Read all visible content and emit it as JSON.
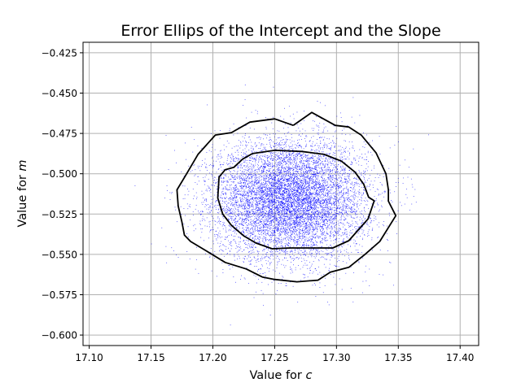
{
  "chart_data": {
    "type": "scatter",
    "title": "Error Ellips of the Intercept and the Slope",
    "xlabel_prefix": "Value for ",
    "xlabel_var": "c",
    "ylabel_prefix": "Value for ",
    "ylabel_var": "m",
    "xlim": [
      17.095,
      17.415
    ],
    "ylim": [
      -0.6065,
      -0.4185
    ],
    "x_ticks": [
      "17.10",
      "17.15",
      "17.20",
      "17.25",
      "17.30",
      "17.35",
      "17.40"
    ],
    "x_tick_values": [
      17.1,
      17.15,
      17.2,
      17.25,
      17.3,
      17.35,
      17.4
    ],
    "y_ticks": [
      "−0.425",
      "−0.450",
      "−0.475",
      "−0.500",
      "−0.525",
      "−0.550",
      "−0.575",
      "−0.600"
    ],
    "y_tick_values": [
      -0.425,
      -0.45,
      -0.475,
      -0.5,
      -0.525,
      -0.55,
      -0.575,
      -0.6
    ],
    "grid": true,
    "scatter": {
      "color": "#0000ff",
      "n_points": 9000,
      "center": [
        17.262,
        -0.516
      ],
      "std": [
        0.031,
        0.0185
      ]
    },
    "contours": [
      {
        "level": "inner",
        "color": "#000000",
        "points": [
          [
            17.25,
            -0.4855
          ],
          [
            17.272,
            -0.4862
          ],
          [
            17.29,
            -0.488
          ],
          [
            17.304,
            -0.4922
          ],
          [
            17.315,
            -0.499
          ],
          [
            17.322,
            -0.5065
          ],
          [
            17.326,
            -0.5145
          ],
          [
            17.3305,
            -0.5168
          ],
          [
            17.3255,
            -0.528
          ],
          [
            17.318,
            -0.5345
          ],
          [
            17.31,
            -0.5415
          ],
          [
            17.297,
            -0.546
          ],
          [
            17.262,
            -0.546
          ],
          [
            17.248,
            -0.5465
          ],
          [
            17.235,
            -0.543
          ],
          [
            17.225,
            -0.5385
          ],
          [
            17.215,
            -0.532
          ],
          [
            17.208,
            -0.525
          ],
          [
            17.204,
            -0.515
          ],
          [
            17.205,
            -0.502
          ],
          [
            17.21,
            -0.4975
          ],
          [
            17.217,
            -0.496
          ],
          [
            17.224,
            -0.491
          ],
          [
            17.232,
            -0.4875
          ],
          [
            17.25,
            -0.4855
          ]
        ]
      },
      {
        "level": "outer",
        "color": "#000000",
        "points": [
          [
            17.265,
            -0.47
          ],
          [
            17.28,
            -0.462
          ],
          [
            17.299,
            -0.47
          ],
          [
            17.31,
            -0.471
          ],
          [
            17.32,
            -0.476
          ],
          [
            17.332,
            -0.487
          ],
          [
            17.34,
            -0.5
          ],
          [
            17.342,
            -0.51
          ],
          [
            17.342,
            -0.517
          ],
          [
            17.348,
            -0.526
          ],
          [
            17.335,
            -0.542
          ],
          [
            17.323,
            -0.55
          ],
          [
            17.31,
            -0.558
          ],
          [
            17.295,
            -0.561
          ],
          [
            17.285,
            -0.566
          ],
          [
            17.268,
            -0.567
          ],
          [
            17.25,
            -0.5655
          ],
          [
            17.24,
            -0.564
          ],
          [
            17.227,
            -0.559
          ],
          [
            17.21,
            -0.555
          ],
          [
            17.195,
            -0.548
          ],
          [
            17.182,
            -0.542
          ],
          [
            17.177,
            -0.538
          ],
          [
            17.175,
            -0.53
          ],
          [
            17.172,
            -0.52
          ],
          [
            17.171,
            -0.51
          ],
          [
            17.178,
            -0.501
          ],
          [
            17.188,
            -0.488
          ],
          [
            17.202,
            -0.476
          ],
          [
            17.215,
            -0.4745
          ],
          [
            17.23,
            -0.468
          ],
          [
            17.25,
            -0.466
          ],
          [
            17.265,
            -0.47
          ]
        ]
      }
    ]
  }
}
